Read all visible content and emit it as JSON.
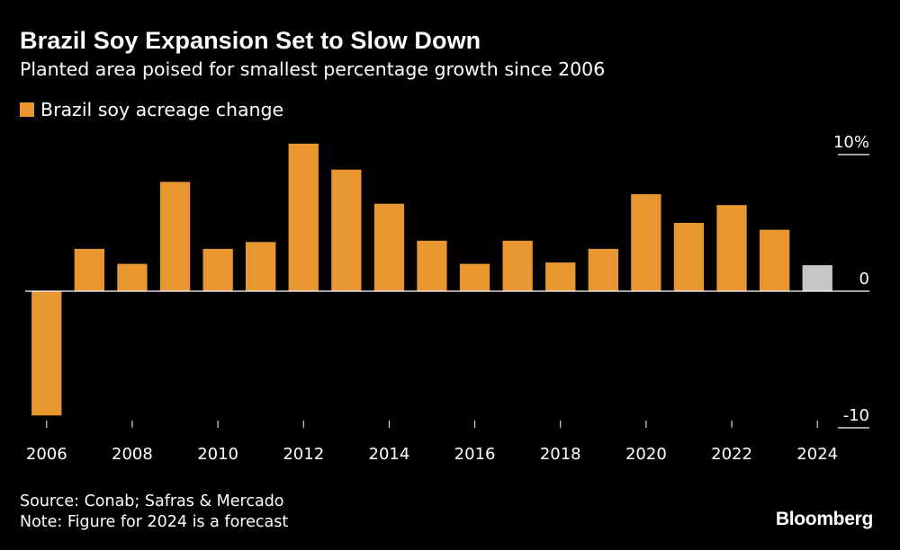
{
  "header": {
    "title": "Brazil Soy Expansion Set to Slow Down",
    "subtitle": "Planted area poised for smallest percentage growth since 2006"
  },
  "legend": {
    "label": "Brazil soy acreage change"
  },
  "footer": {
    "source": "Source: Conab; Safras & Mercado",
    "note": "Note: Figure for 2024 is a forecast",
    "brand": "Bloomberg"
  },
  "colors": {
    "background": "#000000",
    "bar": "#e8962f",
    "forecast_bar": "#c6c6c6",
    "axis": "#ffffff",
    "text": "#ffffff"
  },
  "chart_data": {
    "type": "bar",
    "title": "Brazil Soy Expansion Set to Slow Down",
    "subtitle": "Planted area poised for smallest percentage growth since 2006",
    "xlabel": "",
    "ylabel": "",
    "legend_position": "top-left",
    "y_axis_position": "right",
    "grid": false,
    "ylim": [
      -10,
      10
    ],
    "y_ticks": [
      {
        "value": 10,
        "label": "10%"
      },
      {
        "value": 0,
        "label": "0"
      },
      {
        "value": -10,
        "label": "-10"
      }
    ],
    "categories": [
      2006,
      2007,
      2008,
      2009,
      2010,
      2011,
      2012,
      2013,
      2014,
      2015,
      2016,
      2017,
      2018,
      2019,
      2020,
      2021,
      2022,
      2023,
      2024
    ],
    "x_tick_labels": [
      "2006",
      "2008",
      "2010",
      "2012",
      "2014",
      "2016",
      "2018",
      "2020",
      "2022",
      "2024"
    ],
    "series": [
      {
        "name": "Brazil soy acreage change",
        "values": [
          -9.1,
          3.1,
          2.0,
          8.0,
          3.1,
          3.6,
          10.8,
          8.9,
          6.4,
          3.7,
          2.0,
          3.7,
          2.1,
          3.1,
          7.1,
          5.0,
          6.3,
          4.5,
          1.9
        ]
      }
    ],
    "forecast_categories": [
      2024
    ],
    "annotations": [
      "Figure for 2024 is a forecast"
    ]
  }
}
